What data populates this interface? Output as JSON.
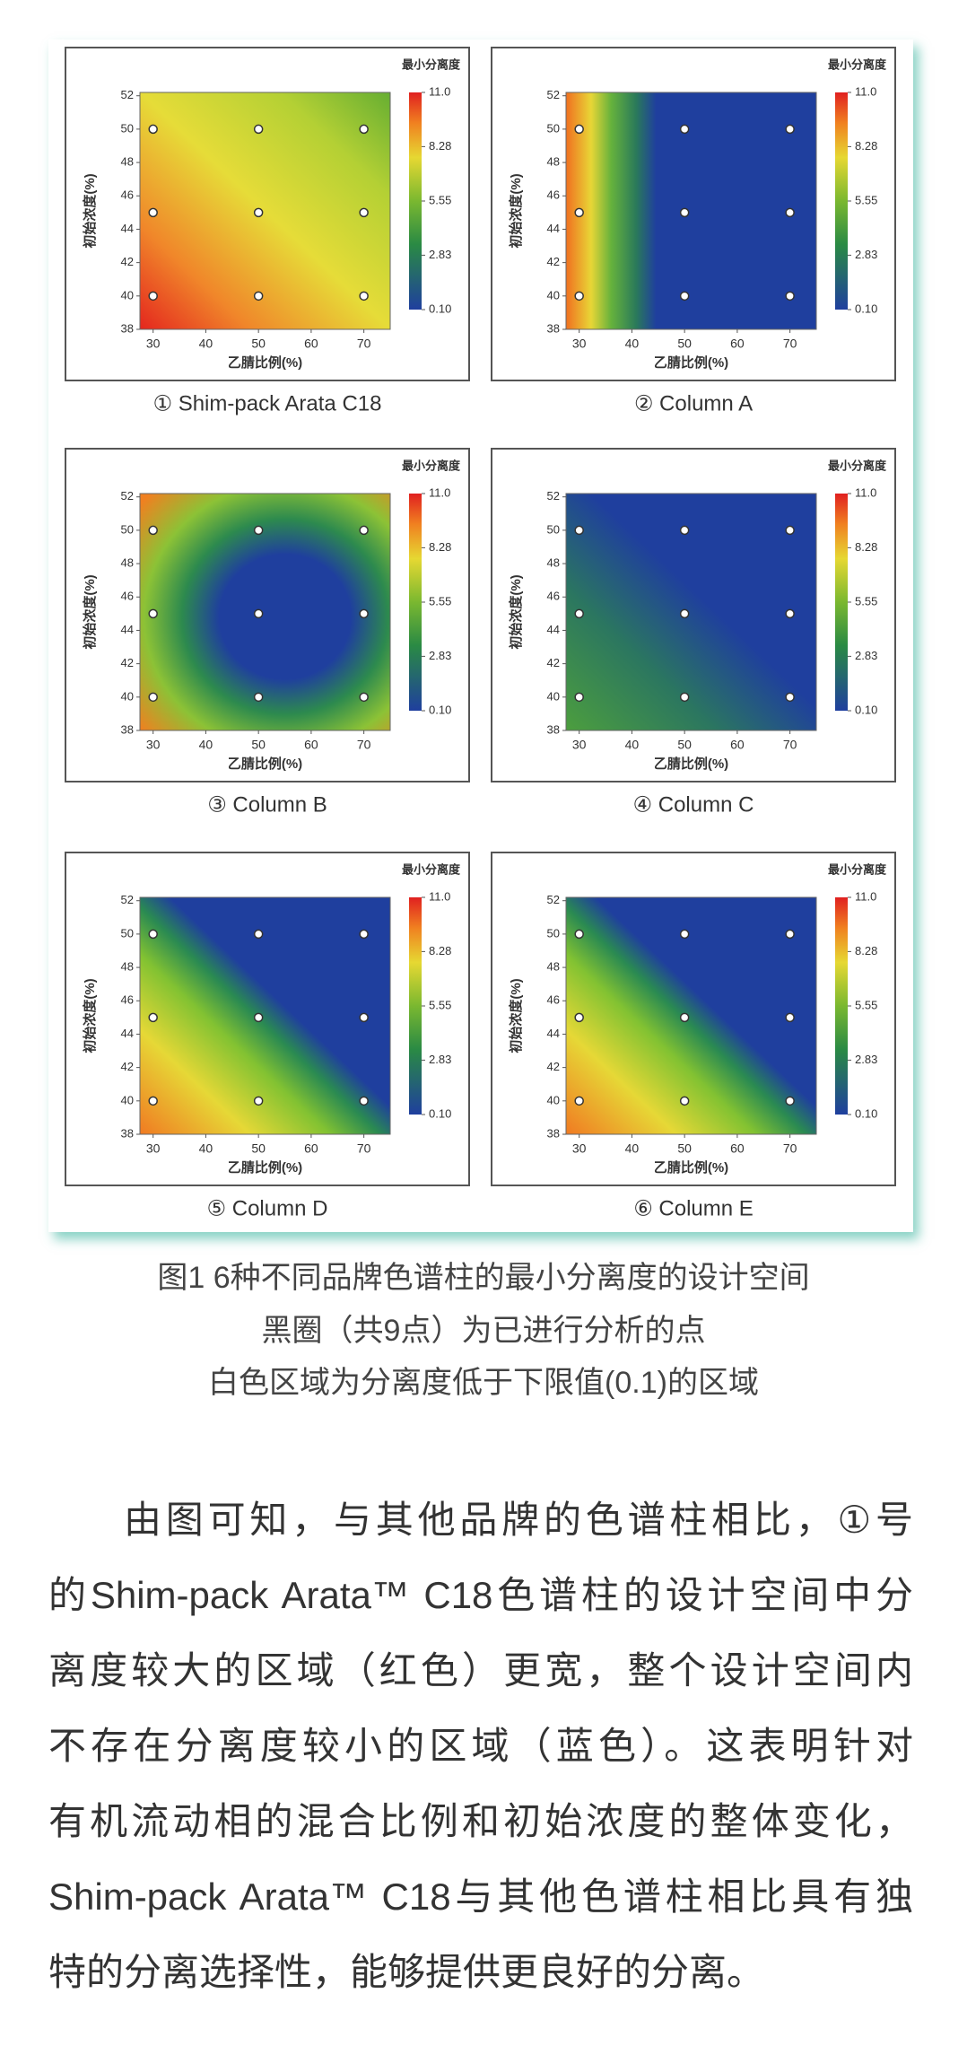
{
  "figure": {
    "panels": [
      {
        "label": "① Shim-pack Arata C18",
        "colorbar_title": "最小分离度",
        "x_label": "乙腈比例(%)",
        "y_label": "初始浓度(%)",
        "xlim": [
          27.5,
          75
        ],
        "ylim": [
          38,
          52.2
        ],
        "xticks": [
          30,
          40,
          50,
          60,
          70
        ],
        "yticks": [
          38,
          40,
          42,
          44,
          46,
          48,
          50,
          52
        ],
        "clim": [
          0.1,
          11
        ],
        "cticks": [
          {
            "value": 11,
            "label": "11.0"
          },
          8.28,
          5.55,
          2.83,
          {
            "value": 0.1,
            "label": "0.10"
          }
        ],
        "points": {
          "x": [
            30,
            30,
            30,
            50,
            50,
            50,
            70,
            70,
            70
          ],
          "y": [
            40,
            45,
            50,
            40,
            45,
            50,
            40,
            45,
            50
          ]
        }
      },
      {
        "label": "② Column A",
        "colorbar_title": "最小分离度",
        "x_label": "乙腈比例(%)",
        "y_label": "初始浓度(%)",
        "xlim": [
          27.5,
          75
        ],
        "ylim": [
          38,
          52.2
        ],
        "xticks": [
          30,
          40,
          50,
          60,
          70
        ],
        "yticks": [
          38,
          40,
          42,
          44,
          46,
          48,
          50,
          52
        ],
        "clim": [
          0.1,
          11
        ],
        "cticks": [
          {
            "value": 11,
            "label": "11.0"
          },
          8.28,
          5.55,
          2.83,
          {
            "value": 0.1,
            "label": "0.10"
          }
        ],
        "points": {
          "x": [
            30,
            30,
            30,
            50,
            50,
            50,
            70,
            70,
            70
          ],
          "y": [
            40,
            45,
            50,
            40,
            45,
            50,
            40,
            45,
            50
          ]
        }
      },
      {
        "label": "③ Column B",
        "colorbar_title": "最小分离度",
        "x_label": "乙腈比例(%)",
        "y_label": "初始浓度(%)",
        "xlim": [
          27.5,
          75
        ],
        "ylim": [
          38,
          52.2
        ],
        "xticks": [
          30,
          40,
          50,
          60,
          70
        ],
        "yticks": [
          38,
          40,
          42,
          44,
          46,
          48,
          50,
          52
        ],
        "clim": [
          0.1,
          11
        ],
        "cticks": [
          {
            "value": 11,
            "label": "11.0"
          },
          8.28,
          5.55,
          2.83,
          {
            "value": 0.1,
            "label": "0.10"
          }
        ],
        "points": {
          "x": [
            30,
            30,
            30,
            50,
            50,
            50,
            70,
            70,
            70
          ],
          "y": [
            40,
            45,
            50,
            40,
            45,
            50,
            40,
            45,
            50
          ]
        }
      },
      {
        "label": "④ Column C",
        "colorbar_title": "最小分离度",
        "x_label": "乙腈比例(%)",
        "y_label": "初始浓度(%)",
        "xlim": [
          27.5,
          75
        ],
        "ylim": [
          38,
          52.2
        ],
        "xticks": [
          30,
          40,
          50,
          60,
          70
        ],
        "yticks": [
          38,
          40,
          42,
          44,
          46,
          48,
          50,
          52
        ],
        "clim": [
          0.1,
          11
        ],
        "cticks": [
          {
            "value": 11,
            "label": "11.0"
          },
          8.28,
          5.55,
          2.83,
          {
            "value": 0.1,
            "label": "0.10"
          }
        ],
        "points": {
          "x": [
            30,
            30,
            30,
            50,
            50,
            50,
            70,
            70,
            70
          ],
          "y": [
            40,
            45,
            50,
            40,
            45,
            50,
            40,
            45,
            50
          ]
        }
      },
      {
        "label": "⑤ Column D",
        "colorbar_title": "最小分离度",
        "x_label": "乙腈比例(%)",
        "y_label": "初始浓度(%)",
        "xlim": [
          27.5,
          75
        ],
        "ylim": [
          38,
          52.2
        ],
        "xticks": [
          30,
          40,
          50,
          60,
          70
        ],
        "yticks": [
          38,
          40,
          42,
          44,
          46,
          48,
          50,
          52
        ],
        "clim": [
          0.1,
          11
        ],
        "cticks": [
          {
            "value": 11,
            "label": "11.0"
          },
          8.28,
          5.55,
          2.83,
          {
            "value": 0.1,
            "label": "0.10"
          }
        ],
        "points": {
          "x": [
            30,
            30,
            30,
            50,
            50,
            50,
            70,
            70,
            70
          ],
          "y": [
            40,
            45,
            50,
            40,
            45,
            50,
            40,
            45,
            50
          ]
        }
      },
      {
        "label": "⑥ Column E",
        "colorbar_title": "最小分离度",
        "x_label": "乙腈比例(%)",
        "y_label": "初始浓度(%)",
        "xlim": [
          27.5,
          75
        ],
        "ylim": [
          38,
          52.2
        ],
        "xticks": [
          30,
          40,
          50,
          60,
          70
        ],
        "yticks": [
          38,
          40,
          42,
          44,
          46,
          48,
          50,
          52
        ],
        "clim": [
          0.1,
          11
        ],
        "cticks": [
          {
            "value": 11,
            "label": "11.0"
          },
          8.28,
          5.55,
          2.83,
          {
            "value": 0.1,
            "label": "0.10"
          }
        ],
        "points": {
          "x": [
            30,
            30,
            30,
            50,
            50,
            50,
            70,
            70,
            70
          ],
          "y": [
            40,
            45,
            50,
            40,
            45,
            50,
            40,
            45,
            50
          ]
        }
      }
    ],
    "caption": [
      "图1 6种不同品牌色谱柱的最小分离度的设计空间",
      "黑圈（共9点）为已进行分析的点",
      "白色区域为分离度低于下限值(0.1)的区域"
    ]
  },
  "paragraph": {
    "lines": [
      "由图可知，与其他品牌的色谱柱相比，①号",
      "的Shim-pack Arata™ C18色谱柱的设计空间中分",
      "离度较大的区域（红色）更宽，整个设计空间内",
      "不存在分离度较小的区域（蓝色）。这表明针对",
      "有机流动相的混合比例和初始浓度的整体变化，",
      "Shim-pack Arata™ C18与其他色谱柱相比具有独",
      "特的分离选择性，能够提供更良好的分离。"
    ]
  }
}
